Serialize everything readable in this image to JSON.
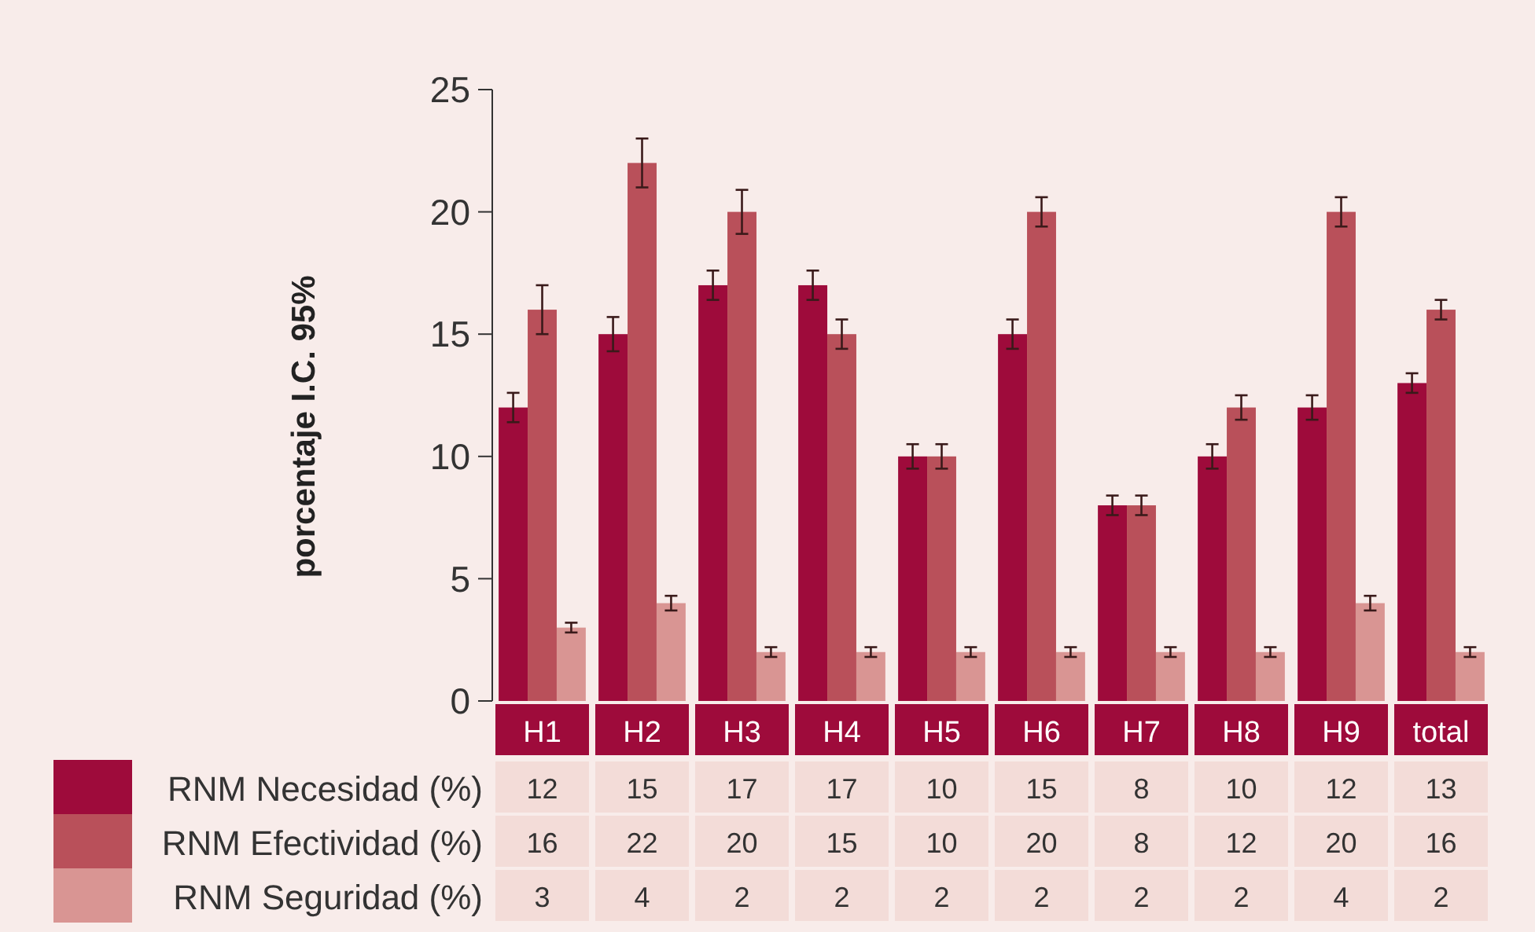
{
  "chart_data": {
    "type": "bar",
    "ylabel": "porcentaje I.C. 95%",
    "categories": [
      "H1",
      "H2",
      "H3",
      "H4",
      "H5",
      "H6",
      "H7",
      "H8",
      "H9",
      "total"
    ],
    "series": [
      {
        "name": "RNM Necesidad (%)",
        "color": "#9e0b3b",
        "values": [
          12,
          15,
          17,
          17,
          10,
          15,
          8,
          10,
          12,
          13
        ],
        "errors": [
          0.6,
          0.7,
          0.6,
          0.6,
          0.5,
          0.6,
          0.4,
          0.5,
          0.5,
          0.4
        ]
      },
      {
        "name": "RNM Efectividad (%)",
        "color": "#b9505a",
        "values": [
          16,
          22,
          20,
          15,
          10,
          20,
          8,
          12,
          20,
          16
        ],
        "errors": [
          1,
          1,
          0.9,
          0.6,
          0.5,
          0.6,
          0.4,
          0.5,
          0.6,
          0.4
        ]
      },
      {
        "name": "RNM Seguridad (%)",
        "color": "#d99593",
        "values": [
          3,
          4,
          2,
          2,
          2,
          2,
          2,
          2,
          4,
          2
        ],
        "errors": [
          0.2,
          0.3,
          0.2,
          0.2,
          0.2,
          0.2,
          0.2,
          0.2,
          0.3,
          0.2
        ]
      }
    ],
    "ylim": [
      0,
      25
    ],
    "yticks": [
      0,
      5,
      10,
      15,
      20,
      25
    ],
    "grid": false,
    "legend": "bottom left",
    "data_labels": true
  }
}
